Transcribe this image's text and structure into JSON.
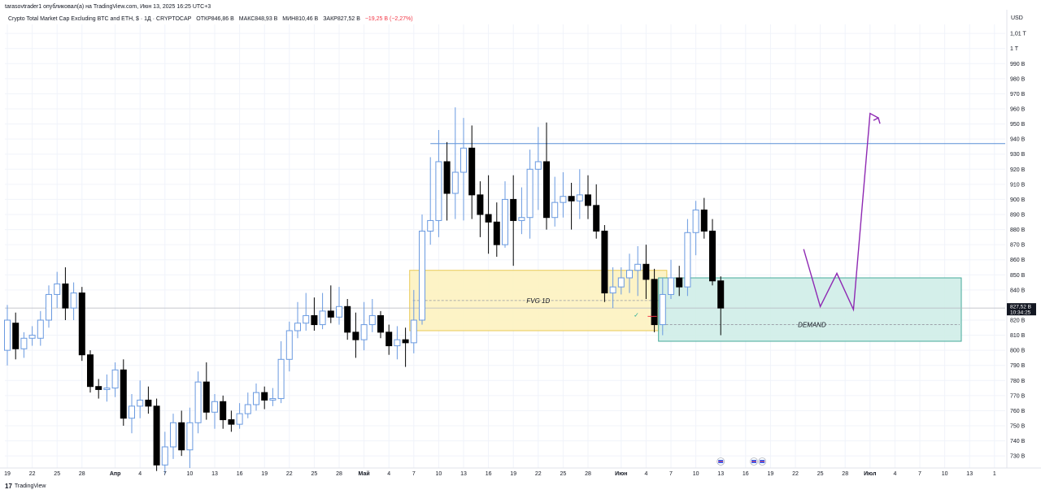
{
  "header": {
    "publisher_line": "tarasovtrader1 опубликовал(а) на TradingView.com, Июн 13, 2025 16:25 UTC+3"
  },
  "legend": {
    "symbol": "Crypto Total Market Cap Excluding BTC and ETH, $ · 1Д · CRYPTOCAP",
    "open_label": "ОТКР",
    "open": "846,86 B",
    "high_label": "МАКС",
    "high": "848,93 B",
    "low_label": "МИН",
    "low": "810,46 B",
    "close_label": "ЗАКР",
    "close": "827,52 B",
    "change": "−19,25 B (−2,27%)",
    "change_color": "#f23645"
  },
  "currency": "USD",
  "footer": {
    "brand": "TradingView",
    "logo": "17"
  },
  "colors": {
    "up": "#6a9ae0",
    "down": "#000000",
    "resistance_line": "#5b8fd6",
    "fvg_fill": "#fdf3c4",
    "fvg_border": "#e8c84f",
    "demand_fill": "#d2efe9",
    "demand_border": "#3aa695",
    "projection": "#8e29b3",
    "last_price_bg": "#131722",
    "event_flag": "#2962ff"
  },
  "chart_data": {
    "type": "candlestick",
    "y_unit": "B USD",
    "ylim": [
      722,
      1016
    ],
    "y_ticks": [
      {
        "v": 730,
        "label": "730 B"
      },
      {
        "v": 740,
        "label": "740 B"
      },
      {
        "v": 750,
        "label": "750 B"
      },
      {
        "v": 760,
        "label": "760 B"
      },
      {
        "v": 770,
        "label": "770 B"
      },
      {
        "v": 780,
        "label": "780 B"
      },
      {
        "v": 790,
        "label": "790 B"
      },
      {
        "v": 800,
        "label": "800 B"
      },
      {
        "v": 810,
        "label": "810 B"
      },
      {
        "v": 820,
        "label": "820 B"
      },
      {
        "v": 840,
        "label": "840 B"
      },
      {
        "v": 850,
        "label": "850 B"
      },
      {
        "v": 860,
        "label": "860 B"
      },
      {
        "v": 870,
        "label": "870 B"
      },
      {
        "v": 880,
        "label": "880 B"
      },
      {
        "v": 890,
        "label": "890 B"
      },
      {
        "v": 900,
        "label": "900 B"
      },
      {
        "v": 910,
        "label": "910 B"
      },
      {
        "v": 920,
        "label": "920 B"
      },
      {
        "v": 930,
        "label": "930 B"
      },
      {
        "v": 940,
        "label": "940 B"
      },
      {
        "v": 950,
        "label": "950 B"
      },
      {
        "v": 960,
        "label": "960 B"
      },
      {
        "v": 970,
        "label": "970 B"
      },
      {
        "v": 980,
        "label": "980 B"
      },
      {
        "v": 990,
        "label": "990 B"
      },
      {
        "v": 1000,
        "label": "1 T"
      },
      {
        "v": 1010,
        "label": "1,01 T"
      }
    ],
    "x_ticks": [
      {
        "i": 0,
        "label": "19",
        "bold": false
      },
      {
        "i": 3,
        "label": "22",
        "bold": false
      },
      {
        "i": 6,
        "label": "25",
        "bold": false
      },
      {
        "i": 9,
        "label": "28",
        "bold": false
      },
      {
        "i": 13,
        "label": "Апр",
        "bold": true
      },
      {
        "i": 16,
        "label": "4",
        "bold": false
      },
      {
        "i": 19,
        "label": "7",
        "bold": false
      },
      {
        "i": 22,
        "label": "10",
        "bold": false
      },
      {
        "i": 25,
        "label": "13",
        "bold": false
      },
      {
        "i": 28,
        "label": "16",
        "bold": false
      },
      {
        "i": 31,
        "label": "19",
        "bold": false
      },
      {
        "i": 34,
        "label": "22",
        "bold": false
      },
      {
        "i": 37,
        "label": "25",
        "bold": false
      },
      {
        "i": 40,
        "label": "28",
        "bold": false
      },
      {
        "i": 43,
        "label": "Май",
        "bold": true
      },
      {
        "i": 46,
        "label": "4",
        "bold": false
      },
      {
        "i": 49,
        "label": "7",
        "bold": false
      },
      {
        "i": 52,
        "label": "10",
        "bold": false
      },
      {
        "i": 55,
        "label": "13",
        "bold": false
      },
      {
        "i": 58,
        "label": "16",
        "bold": false
      },
      {
        "i": 61,
        "label": "19",
        "bold": false
      },
      {
        "i": 64,
        "label": "22",
        "bold": false
      },
      {
        "i": 67,
        "label": "25",
        "bold": false
      },
      {
        "i": 70,
        "label": "28",
        "bold": false
      },
      {
        "i": 74,
        "label": "Июн",
        "bold": true
      },
      {
        "i": 77,
        "label": "4",
        "bold": false
      },
      {
        "i": 80,
        "label": "7",
        "bold": false
      },
      {
        "i": 83,
        "label": "10",
        "bold": false
      },
      {
        "i": 86,
        "label": "13",
        "bold": false
      },
      {
        "i": 89,
        "label": "16",
        "bold": false
      },
      {
        "i": 92,
        "label": "19",
        "bold": false
      },
      {
        "i": 95,
        "label": "22",
        "bold": false
      },
      {
        "i": 98,
        "label": "25",
        "bold": false
      },
      {
        "i": 101,
        "label": "28",
        "bold": false
      },
      {
        "i": 104,
        "label": "Июл",
        "bold": true
      },
      {
        "i": 107,
        "label": "4",
        "bold": false
      },
      {
        "i": 110,
        "label": "7",
        "bold": false
      },
      {
        "i": 113,
        "label": "10",
        "bold": false
      },
      {
        "i": 116,
        "label": "13",
        "bold": false
      },
      {
        "i": 119,
        "label": "1",
        "bold": false
      }
    ],
    "candles": [
      [
        800,
        820,
        830,
        790
      ],
      [
        818,
        801,
        825,
        794
      ],
      [
        801,
        808,
        812,
        795
      ],
      [
        808,
        810,
        816,
        803
      ],
      [
        808,
        820,
        826,
        803
      ],
      [
        820,
        837,
        843,
        815
      ],
      [
        837,
        844,
        852,
        828
      ],
      [
        844,
        828,
        855,
        820
      ],
      [
        828,
        838,
        845,
        820
      ],
      [
        838,
        797,
        842,
        793
      ],
      [
        797,
        776,
        800,
        772
      ],
      [
        776,
        774,
        781,
        768
      ],
      [
        774,
        775,
        784,
        766
      ],
      [
        775,
        787,
        792,
        769
      ],
      [
        787,
        755,
        794,
        750
      ],
      [
        755,
        763,
        771,
        745
      ],
      [
        763,
        767,
        780,
        755
      ],
      [
        767,
        763,
        776,
        758
      ],
      [
        763,
        724,
        768,
        720
      ],
      [
        724,
        736,
        746,
        718
      ],
      [
        736,
        752,
        758,
        728
      ],
      [
        752,
        734,
        760,
        730
      ],
      [
        734,
        752,
        762,
        722
      ],
      [
        752,
        779,
        786,
        745
      ],
      [
        779,
        759,
        792,
        754
      ],
      [
        759,
        766,
        771,
        748
      ],
      [
        766,
        754,
        770,
        748
      ],
      [
        754,
        751,
        760,
        746
      ],
      [
        751,
        758,
        765,
        748
      ],
      [
        758,
        764,
        772,
        755
      ],
      [
        764,
        772,
        778,
        760
      ],
      [
        772,
        767,
        776,
        761
      ],
      [
        767,
        768,
        775,
        763
      ],
      [
        768,
        794,
        806,
        765
      ],
      [
        794,
        813,
        819,
        786
      ],
      [
        813,
        818,
        832,
        808
      ],
      [
        818,
        823,
        838,
        813
      ],
      [
        823,
        817,
        835,
        813
      ],
      [
        817,
        826,
        838,
        814
      ],
      [
        826,
        822,
        843,
        818
      ],
      [
        822,
        829,
        842,
        817
      ],
      [
        829,
        812,
        834,
        807
      ],
      [
        812,
        807,
        825,
        795
      ],
      [
        807,
        817,
        832,
        800
      ],
      [
        817,
        823,
        834,
        812
      ],
      [
        823,
        812,
        826,
        808
      ],
      [
        812,
        803,
        817,
        797
      ],
      [
        803,
        807,
        816,
        794
      ],
      [
        807,
        805,
        815,
        789
      ],
      [
        805,
        820,
        840,
        798
      ],
      [
        820,
        879,
        890,
        817
      ],
      [
        879,
        886,
        928,
        870
      ],
      [
        886,
        925,
        946,
        875
      ],
      [
        925,
        904,
        938,
        886
      ],
      [
        904,
        918,
        961,
        887
      ],
      [
        918,
        934,
        954,
        886
      ],
      [
        934,
        903,
        949,
        887
      ],
      [
        903,
        890,
        912,
        875
      ],
      [
        890,
        885,
        916,
        864
      ],
      [
        885,
        870,
        898,
        862
      ],
      [
        870,
        900,
        912,
        868
      ],
      [
        900,
        886,
        916,
        856
      ],
      [
        886,
        888,
        908,
        877
      ],
      [
        888,
        920,
        933,
        874
      ],
      [
        920,
        925,
        948,
        893
      ],
      [
        925,
        888,
        951,
        880
      ],
      [
        888,
        898,
        915,
        882
      ],
      [
        898,
        902,
        918,
        888
      ],
      [
        902,
        899,
        911,
        880
      ],
      [
        899,
        903,
        920,
        887
      ],
      [
        903,
        896,
        916,
        887
      ],
      [
        896,
        879,
        910,
        874
      ],
      [
        879,
        838,
        883,
        832
      ],
      [
        838,
        842,
        855,
        828
      ],
      [
        842,
        848,
        855,
        837
      ],
      [
        848,
        853,
        864,
        838
      ],
      [
        853,
        857,
        869,
        836
      ],
      [
        857,
        847,
        870,
        834
      ],
      [
        847,
        817,
        854,
        812
      ],
      [
        817,
        837,
        848,
        810
      ],
      [
        837,
        848,
        860,
        834
      ],
      [
        848,
        842,
        856,
        836
      ],
      [
        842,
        878,
        887,
        836
      ],
      [
        878,
        893,
        899,
        863
      ],
      [
        893,
        879,
        901,
        874
      ],
      [
        879,
        846,
        887,
        843
      ],
      [
        846,
        828,
        849,
        810
      ]
    ],
    "projection_path": [
      [
        96,
        867
      ],
      [
        98,
        829
      ],
      [
        100,
        851
      ],
      [
        102,
        827
      ],
      [
        104,
        957
      ],
      [
        105,
        954
      ]
    ],
    "resistance_level": 937,
    "resistance_start": 51,
    "zones": [
      {
        "label": "FVG 1D",
        "x0": 48.5,
        "x1": 79.5,
        "y0": 813,
        "y1": 853
      },
      {
        "label": "DEMAND",
        "x0": 78.5,
        "x1": 115,
        "y0": 806,
        "y1": 848
      }
    ],
    "last_price": "827,52 B",
    "countdown": "10:34:25"
  }
}
